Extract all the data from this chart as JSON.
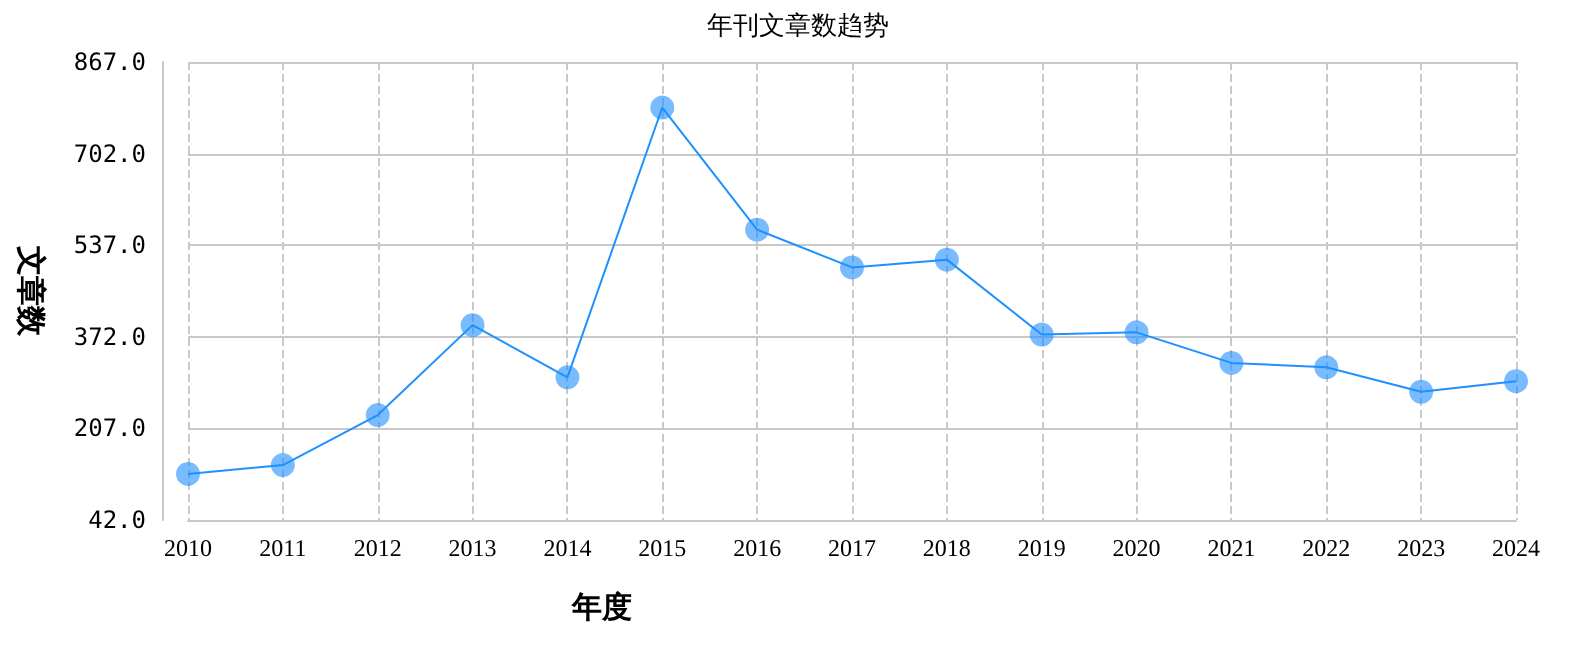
{
  "chart_data": {
    "type": "line",
    "title": "年刊文章数趋势",
    "xlabel": "年度",
    "ylabel": "文章数",
    "categories": [
      "2010",
      "2011",
      "2012",
      "2013",
      "2014",
      "2015",
      "2016",
      "2017",
      "2018",
      "2019",
      "2020",
      "2021",
      "2022",
      "2023",
      "2024"
    ],
    "series": [
      {
        "color": "#1e90ff",
        "values": [
          125,
          141,
          231,
          393,
          299,
          785,
          565,
          497,
          511,
          376,
          380,
          325,
          317,
          273,
          292
        ]
      }
    ],
    "ylim": [
      42,
      867
    ],
    "yticks": [
      {
        "value": 42,
        "label": "42.0"
      },
      {
        "value": 207,
        "label": "207.0"
      },
      {
        "value": 372,
        "label": "372.0"
      },
      {
        "value": 537,
        "label": "537.0"
      },
      {
        "value": 702,
        "label": "702.0"
      },
      {
        "value": 867,
        "label": "867.0"
      }
    ],
    "grid": true,
    "marker": "circle",
    "line_style": "solid"
  }
}
